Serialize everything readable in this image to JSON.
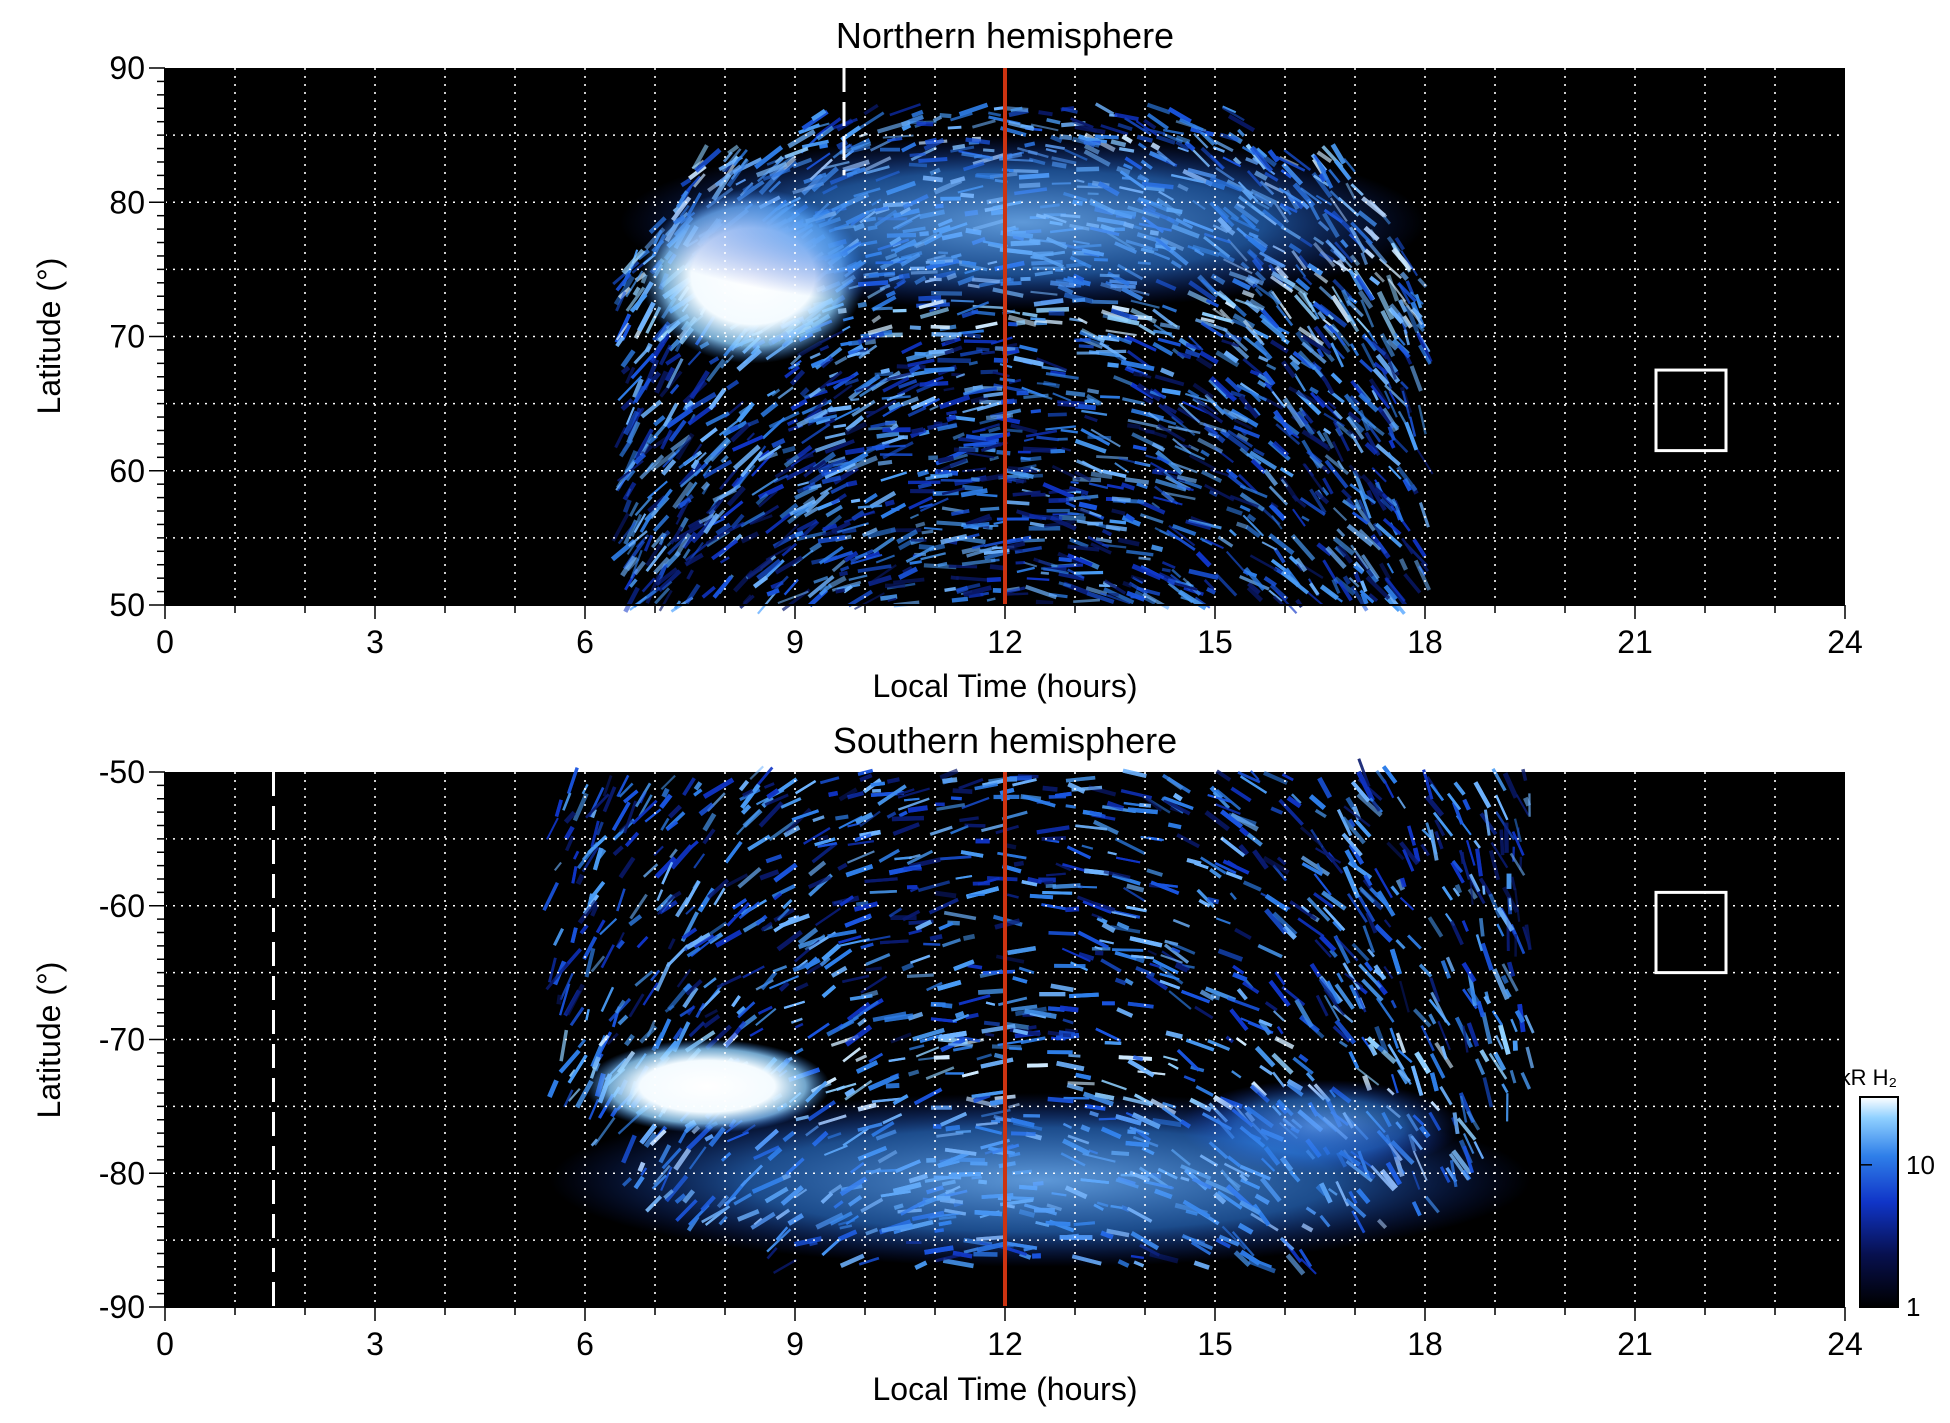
{
  "chart_data": [
    {
      "type": "heatmap",
      "title": "Northern hemisphere",
      "xlabel": "Local Time (hours)",
      "ylabel": "Latitude (°)",
      "xlim": [
        0,
        24
      ],
      "ylim": [
        50,
        90
      ],
      "xticks": [
        "0",
        "3",
        "6",
        "9",
        "12",
        "15",
        "18",
        "21",
        "24"
      ],
      "yticks": [
        "50",
        "60",
        "70",
        "80",
        "90"
      ],
      "grid": true,
      "background": "#000000",
      "coverage_lt": [
        6.5,
        18.0
      ],
      "noon_line": {
        "x": 12,
        "color": "#cc3311"
      },
      "dashed_marker": {
        "x": 9.7,
        "y_range": [
          82,
          90
        ]
      },
      "box": {
        "x_range": [
          21.3,
          22.3
        ],
        "y_range": [
          61.5,
          67.5
        ]
      },
      "bright_regions": [
        {
          "lt": [
            6.8,
            10.0
          ],
          "lat": [
            68,
            81
          ],
          "intensity": "high"
        },
        {
          "lt": [
            6.5,
            18.0
          ],
          "lat": [
            72,
            85
          ],
          "intensity": "medium"
        }
      ]
    },
    {
      "type": "heatmap",
      "title": "Southern hemisphere",
      "xlabel": "Local Time (hours)",
      "ylabel": "Latitude (°)",
      "xlim": [
        0,
        24
      ],
      "ylim": [
        -90,
        -50
      ],
      "xticks": [
        "0",
        "3",
        "6",
        "9",
        "12",
        "15",
        "18",
        "21",
        "24"
      ],
      "yticks": [
        "-50",
        "-60",
        "-70",
        "-80",
        "-90"
      ],
      "grid": true,
      "background": "#000000",
      "coverage_lt": [
        5.5,
        19.5
      ],
      "noon_line": {
        "x": 12,
        "color": "#cc3311"
      },
      "dashed_marker": {
        "x": 1.55,
        "y_range": [
          -90,
          -50
        ]
      },
      "box": {
        "x_range": [
          21.3,
          22.3
        ],
        "y_range": [
          -65,
          -59
        ]
      },
      "bright_regions": [
        {
          "lt": [
            6.0,
            9.5
          ],
          "lat": [
            -77,
            -70
          ],
          "intensity": "high"
        },
        {
          "lt": [
            14.5,
            18.5
          ],
          "lat": [
            -80,
            -73
          ],
          "intensity": "medium"
        },
        {
          "lt": [
            5.5,
            19.5
          ],
          "lat": [
            -87,
            -74
          ],
          "intensity": "medium"
        }
      ]
    }
  ],
  "colorbar": {
    "label": "kR H₂",
    "ticks": [
      "1",
      "10"
    ],
    "scale": "log",
    "range": [
      1,
      30
    ],
    "colors": [
      "#000000",
      "#07104f",
      "#1035c8",
      "#2f7fe9",
      "#8fd0ff",
      "#ffffff"
    ]
  }
}
